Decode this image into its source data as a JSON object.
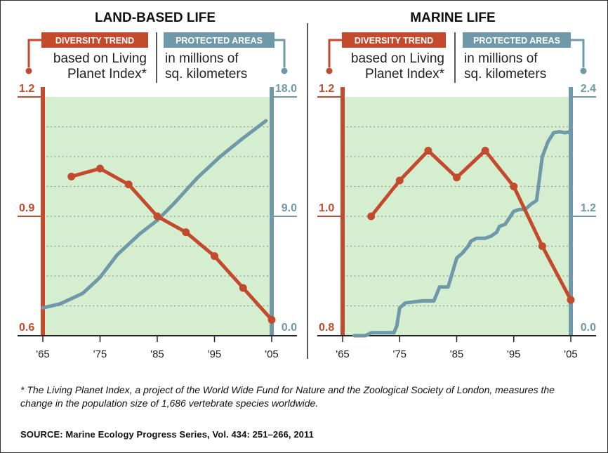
{
  "colors": {
    "diversity": "#c34a2c",
    "protected": "#6f98a8",
    "plot_bg": "#d6eed0",
    "grid": "#8f9a8c",
    "text": "#222222"
  },
  "chart_data": [
    {
      "type": "line",
      "title": "LAND-BASED LIFE",
      "left_axis_header": "DIVERSITY TREND",
      "left_axis_note": [
        "based on Living",
        "Planet Index*"
      ],
      "right_axis_header": "PROTECTED AREAS",
      "right_axis_note": [
        "in millions of",
        "sq. kilometers"
      ],
      "xlim": [
        1965,
        2005
      ],
      "x_tick_labels": [
        "'65",
        "'75",
        "'85",
        "'95",
        "'05"
      ],
      "x_ticks": [
        1965,
        1975,
        1985,
        1995,
        2005
      ],
      "left_ylim": [
        0.6,
        1.2
      ],
      "left_tick_labels": [
        "1.2",
        "0.9",
        "0.6"
      ],
      "left_ticks": [
        1.2,
        0.9,
        0.6
      ],
      "right_ylim": [
        0,
        18
      ],
      "right_tick_labels": [
        "18.0",
        "9.0",
        "0.0"
      ],
      "right_ticks": [
        18,
        9,
        0
      ],
      "grid": true,
      "series": [
        {
          "name": "DIVERSITY TREND",
          "axis": "left",
          "markers": true,
          "x": [
            1970,
            1975,
            1980,
            1985,
            1990,
            1995,
            2000,
            2005
          ],
          "y": [
            1.0,
            1.02,
            0.98,
            0.9,
            0.86,
            0.8,
            0.72,
            0.64
          ]
        },
        {
          "name": "PROTECTED AREAS",
          "axis": "right",
          "markers": false,
          "x": [
            1965,
            1968,
            1972,
            1975,
            1978,
            1982,
            1985,
            1988,
            1992,
            1996,
            2000,
            2004
          ],
          "y": [
            2.1,
            2.4,
            3.2,
            4.4,
            6.1,
            7.7,
            8.7,
            10.0,
            11.9,
            13.5,
            14.9,
            16.2
          ]
        }
      ]
    },
    {
      "type": "line",
      "title": "MARINE LIFE",
      "left_axis_header": "DIVERSITY TREND",
      "left_axis_note": [
        "based on Living",
        "Planet Index*"
      ],
      "right_axis_header": "PROTECTED AREAS",
      "right_axis_note": [
        "in millions of",
        "sq. kilometers"
      ],
      "xlim": [
        1965,
        2005
      ],
      "x_tick_labels": [
        "'65",
        "'75",
        "'85",
        "'95",
        "'05"
      ],
      "x_ticks": [
        1965,
        1975,
        1985,
        1995,
        2005
      ],
      "left_ylim": [
        0.8,
        1.2
      ],
      "left_tick_labels": [
        "1.2",
        "1.0",
        "0.8"
      ],
      "left_ticks": [
        1.2,
        1.0,
        0.8
      ],
      "right_ylim": [
        0,
        2.4
      ],
      "right_tick_labels": [
        "2.4",
        "1.2",
        "0.0"
      ],
      "right_ticks": [
        2.4,
        1.2,
        0
      ],
      "grid": true,
      "series": [
        {
          "name": "DIVERSITY TREND",
          "axis": "left",
          "markers": true,
          "x": [
            1970,
            1975,
            1980,
            1985,
            1990,
            1995,
            2000,
            2005
          ],
          "y": [
            1.0,
            1.06,
            1.11,
            1.065,
            1.11,
            1.05,
            0.95,
            0.86
          ],
          "interpolate": [
            null,
            null,
            null,
            null,
            null,
            null,
            null,
            null
          ]
        },
        {
          "name": "PROTECTED AREAS",
          "axis": "right",
          "markers": false,
          "x": [
            1967,
            1969,
            1970,
            1974,
            1974.5,
            1975,
            1976,
            1979,
            1980,
            1981,
            1981.5,
            1982,
            1983.5,
            1985,
            1986,
            1987,
            1987.5,
            1988.5,
            1990,
            1991,
            1992,
            1992.5,
            1993.5,
            1995,
            1996,
            1997,
            1998,
            1999,
            2000,
            2001,
            2002,
            2003,
            2004,
            2005
          ],
          "y": [
            0.0,
            0.0,
            0.03,
            0.03,
            0.1,
            0.28,
            0.33,
            0.35,
            0.35,
            0.35,
            0.42,
            0.49,
            0.49,
            0.78,
            0.83,
            0.9,
            0.95,
            0.98,
            0.98,
            1.0,
            1.04,
            1.1,
            1.12,
            1.25,
            1.27,
            1.27,
            1.32,
            1.36,
            1.8,
            1.95,
            2.04,
            2.05,
            2.04,
            2.05
          ]
        }
      ]
    }
  ],
  "footnote": "* The Living Planet Index, a project of the World Wide Fund for Nature and the Zoological Society of London, measures the change in the population size of 1,686 vertebrate species worldwide.",
  "source": "SOURCE:  Marine Ecology Progress Series, Vol. 434: 251–266, 2011"
}
